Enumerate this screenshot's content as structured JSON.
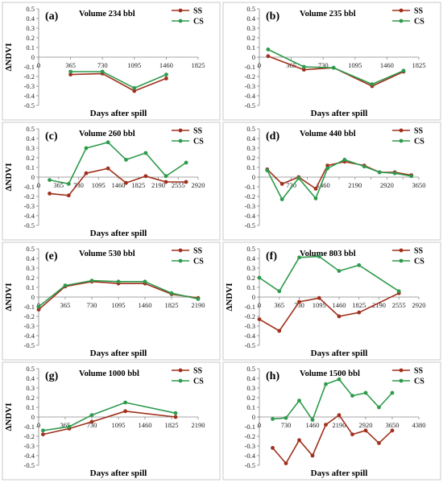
{
  "chart_data": [
    {
      "type": "line",
      "letter": "(a)",
      "title": "Volume 234 bbl",
      "xlabel": "Days after spill",
      "ylabel": "ΔNDVI",
      "xlim": [
        0,
        1825
      ],
      "ylim": [
        -0.5,
        0.5
      ],
      "xticks": [
        0,
        365,
        730,
        1095,
        1460,
        1825
      ],
      "xtick_labels": [
        "0",
        "365",
        "730",
        "1095",
        "1460",
        "1825"
      ],
      "yticks": [
        0.5,
        0.4,
        0.3,
        0.2,
        0.1,
        0,
        -0.1,
        -0.2,
        -0.3,
        -0.4,
        -0.5
      ],
      "ytick_labels": [
        "0.5",
        "0.4",
        "0.3",
        "0.2",
        "0.1",
        "0",
        "-0.1",
        "-0.2",
        "-0.3",
        "-0.4",
        "-0.5"
      ],
      "grid": false,
      "legend": "top-right",
      "series": [
        {
          "name": "SS",
          "color": "#a0301c",
          "x": [
            365,
            730,
            1095,
            1460
          ],
          "y": [
            -0.18,
            -0.17,
            -0.35,
            -0.22
          ]
        },
        {
          "name": "CS",
          "color": "#2e9a4c",
          "x": [
            365,
            730,
            1095,
            1460
          ],
          "y": [
            -0.15,
            -0.15,
            -0.32,
            -0.18
          ]
        }
      ]
    },
    {
      "type": "line",
      "letter": "(b)",
      "title": "Volume 235 bbl",
      "xlabel": "Days after spill",
      "ylabel": "",
      "xlim": [
        0,
        1825
      ],
      "ylim": [
        -0.5,
        0.5
      ],
      "xticks": [
        0,
        365,
        730,
        1095,
        1460,
        1825
      ],
      "xtick_labels": [
        "0",
        "365",
        "730",
        "1095",
        "1460",
        "1825"
      ],
      "yticks": [
        0.5,
        0.4,
        0.3,
        0.2,
        0.1,
        0,
        -0.1,
        -0.2,
        -0.3,
        -0.4,
        -0.5
      ],
      "ytick_labels": [
        "0.5",
        "0.4",
        "0.3",
        "0.2",
        "0.1",
        "0",
        "-0.1",
        "-0.2",
        "-0.3",
        "-0.4",
        "-0.5"
      ],
      "grid": false,
      "legend": "top-right",
      "series": [
        {
          "name": "SS",
          "color": "#a0301c",
          "x": [
            100,
            510,
            850,
            1290,
            1650
          ],
          "y": [
            0.01,
            -0.13,
            -0.11,
            -0.3,
            -0.15
          ]
        },
        {
          "name": "CS",
          "color": "#2e9a4c",
          "x": [
            100,
            510,
            850,
            1290,
            1650
          ],
          "y": [
            0.08,
            -0.1,
            -0.11,
            -0.28,
            -0.14
          ]
        }
      ]
    },
    {
      "type": "line",
      "letter": "(c)",
      "title": "Volume 260 bbl",
      "xlabel": "Days after spill",
      "ylabel": "ΔNDVI",
      "xlim": [
        0,
        2920
      ],
      "ylim": [
        -0.5,
        0.5
      ],
      "xticks": [
        0,
        365,
        730,
        1095,
        1460,
        1825,
        2190,
        2555,
        2920
      ],
      "xtick_labels": [
        "0",
        "365",
        "730",
        "1095",
        "1460",
        "1825",
        "2190",
        "2555",
        "2920"
      ],
      "yticks": [
        0.5,
        0.4,
        0.3,
        0.2,
        0.1,
        0,
        -0.1,
        -0.2,
        -0.3,
        -0.4,
        -0.5
      ],
      "ytick_labels": [
        "0.5",
        "0.4",
        "0.3",
        "0.2",
        "0.1",
        "0",
        "-0.1",
        "-0.2",
        "-0.3",
        "-0.4",
        "-0.5"
      ],
      "grid": false,
      "legend": "top-right",
      "series": [
        {
          "name": "SS",
          "color": "#a0301c",
          "x": [
            200,
            550,
            870,
            1270,
            1600,
            1960,
            2330,
            2700
          ],
          "y": [
            -0.17,
            -0.19,
            0.04,
            0.09,
            -0.06,
            0.01,
            -0.05,
            -0.05
          ]
        },
        {
          "name": "CS",
          "color": "#2e9a4c",
          "x": [
            200,
            550,
            870,
            1270,
            1600,
            1960,
            2330,
            2700
          ],
          "y": [
            -0.03,
            -0.07,
            0.3,
            0.36,
            0.18,
            0.25,
            0.01,
            0.15
          ]
        }
      ]
    },
    {
      "type": "line",
      "letter": "(d)",
      "title": "Volume 440 bbl",
      "xlabel": "",
      "ylabel": "",
      "xlim": [
        0,
        3650
      ],
      "ylim": [
        -0.5,
        0.5
      ],
      "xticks": [
        0,
        365,
        730,
        1095,
        1460,
        1825,
        2190,
        2555,
        2920,
        3285,
        3650
      ],
      "xtick_labels": [
        "",
        "",
        "730",
        "",
        "1460",
        "",
        "2190",
        "",
        "2920",
        "",
        "3650"
      ],
      "yticks": [
        0.5,
        0.4,
        0.3,
        0.2,
        0.1,
        0,
        -0.1,
        -0.2,
        -0.3,
        -0.4,
        -0.5
      ],
      "ytick_labels": [
        "0.5",
        "0.4",
        "0.3",
        "0.2",
        "0.1",
        "0",
        "-0.1",
        "-0.2",
        "-0.3",
        "-0.4",
        "-0.5"
      ],
      "grid": false,
      "legend": "top-right",
      "series": [
        {
          "name": "SS",
          "color": "#a0301c",
          "x": [
            180,
            520,
            900,
            1290,
            1560,
            1950,
            2400,
            2750,
            3100,
            3480
          ],
          "y": [
            0.08,
            -0.07,
            0,
            -0.12,
            0.12,
            0.16,
            0.12,
            0.05,
            0.05,
            0.02
          ]
        },
        {
          "name": "CS",
          "color": "#2e9a4c",
          "x": [
            180,
            520,
            900,
            1290,
            1560,
            1950,
            2400,
            2750,
            3100,
            3480
          ],
          "y": [
            0.07,
            -0.23,
            -0.01,
            -0.22,
            0.09,
            0.18,
            0.11,
            0.05,
            0.04,
            0.01
          ]
        }
      ]
    },
    {
      "type": "line",
      "letter": "(e)",
      "title": "Volume 530 bbl",
      "xlabel": "Days after spill",
      "ylabel": "ΔNDVI",
      "xlim": [
        0,
        2190
      ],
      "ylim": [
        -0.5,
        0.5
      ],
      "xticks": [
        0,
        365,
        730,
        1095,
        1460,
        1825,
        2190
      ],
      "xtick_labels": [
        "0",
        "365",
        "730",
        "1095",
        "1460",
        "1825",
        "2190"
      ],
      "yticks": [
        0.5,
        0.4,
        0.3,
        0.2,
        0.1,
        0,
        -0.1,
        -0.2,
        -0.3,
        -0.4,
        -0.5
      ],
      "ytick_labels": [
        "0.5",
        "0.4",
        "0.3",
        "0.2",
        "0.1",
        "0",
        "-0.1",
        "-0.2",
        "-0.3",
        "-0.4",
        "-0.5"
      ],
      "grid": false,
      "legend": "top-right",
      "series": [
        {
          "name": "SS",
          "color": "#a0301c",
          "x": [
            0,
            365,
            730,
            1095,
            1460,
            1825,
            2190
          ],
          "y": [
            -0.13,
            0.11,
            0.16,
            0.14,
            0.14,
            0.03,
            -0.01
          ]
        },
        {
          "name": "CS",
          "color": "#2e9a4c",
          "x": [
            0,
            365,
            730,
            1095,
            1460,
            1825,
            2190
          ],
          "y": [
            -0.1,
            0.12,
            0.17,
            0.16,
            0.16,
            0.04,
            -0.02
          ]
        }
      ]
    },
    {
      "type": "line",
      "letter": "(f)",
      "title": "Volume 803 bbl",
      "xlabel": "Days after spill",
      "ylabel": "ΔNDVI",
      "xlim": [
        0,
        2920
      ],
      "ylim": [
        -0.5,
        0.5
      ],
      "xticks": [
        0,
        365,
        730,
        1095,
        1460,
        1825,
        2190,
        2555,
        2920
      ],
      "xtick_labels": [
        "0",
        "365",
        "730",
        "1095",
        "1460",
        "1825",
        "2190",
        "2555",
        "2920"
      ],
      "yticks": [
        0.5,
        0.4,
        0.3,
        0.2,
        0.1,
        0,
        -0.1,
        -0.2,
        -0.3,
        -0.4,
        -0.5
      ],
      "ytick_labels": [
        "0.5",
        "0.4",
        "0.3",
        "0.2",
        "0.1",
        "0",
        "-0.1",
        "-0.2",
        "-0.3",
        "-0.4",
        "-0.5"
      ],
      "grid": false,
      "legend": "top-right",
      "series": [
        {
          "name": "SS",
          "color": "#a0301c",
          "x": [
            0,
            365,
            730,
            1095,
            1460,
            1825,
            2555
          ],
          "y": [
            -0.23,
            -0.35,
            -0.05,
            -0.01,
            -0.2,
            -0.16,
            0.04
          ]
        },
        {
          "name": "CS",
          "color": "#2e9a4c",
          "x": [
            0,
            365,
            730,
            1095,
            1460,
            1825,
            2555
          ],
          "y": [
            0.2,
            0.06,
            0.41,
            0.42,
            0.27,
            0.33,
            0.06
          ]
        }
      ]
    },
    {
      "type": "line",
      "letter": "(g)",
      "title": "Volume 1000 bbl",
      "xlabel": "Days after spill",
      "ylabel": "ΔNDVI",
      "xlim": [
        0,
        2190
      ],
      "ylim": [
        -0.5,
        0.5
      ],
      "xticks": [
        0,
        365,
        730,
        1095,
        1460,
        1825,
        2190
      ],
      "xtick_labels": [
        "0",
        "365",
        "730",
        "1095",
        "1460",
        "1825",
        "2190"
      ],
      "yticks": [
        0.5,
        0.4,
        0.3,
        0.2,
        0.1,
        0,
        -0.1,
        -0.2,
        -0.3,
        -0.4,
        -0.5
      ],
      "ytick_labels": [
        "0.5",
        "0.4",
        "0.3",
        "0.2",
        "0.1",
        "0",
        "-0.1",
        "-0.2",
        "-0.3",
        "-0.4",
        "-0.5"
      ],
      "grid": false,
      "legend": "top-right",
      "series": [
        {
          "name": "SS",
          "color": "#a0301c",
          "x": [
            60,
            420,
            730,
            1190,
            1880
          ],
          "y": [
            -0.18,
            -0.12,
            -0.05,
            0.06,
            0.0
          ]
        },
        {
          "name": "CS",
          "color": "#2e9a4c",
          "x": [
            60,
            420,
            730,
            1190,
            1880
          ],
          "y": [
            -0.14,
            -0.1,
            0.02,
            0.15,
            0.04
          ]
        }
      ]
    },
    {
      "type": "line",
      "letter": "(h)",
      "title": "Volume 1500 bbl",
      "xlabel": "Days after spill",
      "ylabel": "",
      "xlim": [
        0,
        4380
      ],
      "ylim": [
        -0.5,
        0.5
      ],
      "xticks": [
        0,
        730,
        1460,
        2190,
        2920,
        3650,
        4380
      ],
      "xtick_labels": [
        "0",
        "730",
        "1460",
        "2190",
        "2920",
        "3650",
        "4380"
      ],
      "yticks": [
        0.5,
        0.4,
        0.3,
        0.2,
        0.1,
        0,
        -0.1,
        -0.2,
        -0.3,
        -0.4,
        -0.5
      ],
      "ytick_labels": [
        "0.5",
        "0.4",
        "0.3",
        "0.2",
        "0.1",
        "0",
        "-0.1",
        "-0.2",
        "-0.3",
        "-0.4",
        "-0.5"
      ],
      "grid": false,
      "legend": "top-right",
      "series": [
        {
          "name": "SS",
          "color": "#a0301c",
          "x": [
            365,
            730,
            1095,
            1460,
            1825,
            2190,
            2555,
            2920,
            3285,
            3650
          ],
          "y": [
            -0.32,
            -0.48,
            -0.24,
            -0.4,
            -0.08,
            0.02,
            -0.18,
            -0.14,
            -0.27,
            -0.14
          ]
        },
        {
          "name": "CS",
          "color": "#2e9a4c",
          "x": [
            365,
            730,
            1095,
            1460,
            1825,
            2190,
            2555,
            2920,
            3285,
            3650
          ],
          "y": [
            -0.02,
            -0.01,
            0.17,
            -0.03,
            0.34,
            0.39,
            0.22,
            0.25,
            0.1,
            0.25
          ]
        }
      ]
    }
  ]
}
